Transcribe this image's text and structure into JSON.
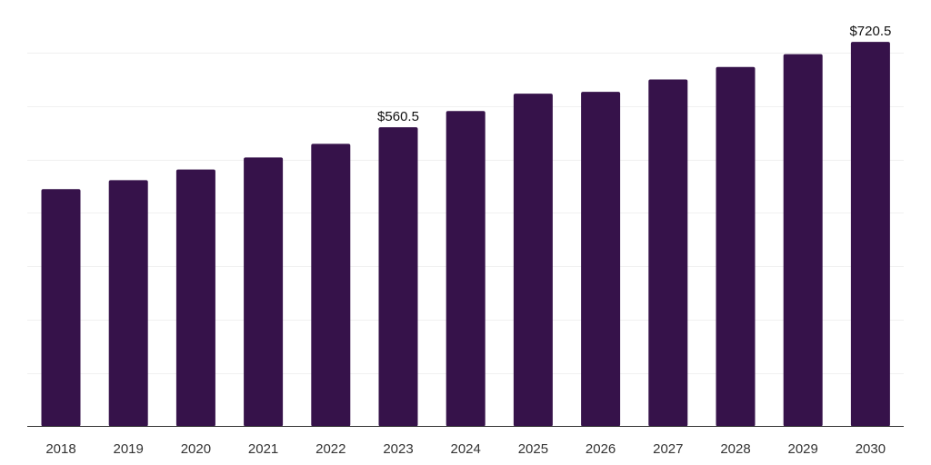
{
  "chart_data": {
    "type": "bar",
    "title": "",
    "xlabel": "",
    "ylabel": "",
    "categories": [
      "2018",
      "2019",
      "2020",
      "2021",
      "2022",
      "2023",
      "2024",
      "2025",
      "2026",
      "2027",
      "2028",
      "2029",
      "2030"
    ],
    "values": [
      444.5,
      461.5,
      481.5,
      504,
      529.5,
      560.5,
      591,
      623.5,
      627,
      650,
      673.5,
      697.5,
      720.5
    ],
    "data_labels": [
      {
        "category": "2023",
        "text": "$560.5"
      },
      {
        "category": "2030",
        "text": "$720.5"
      }
    ],
    "ylim": [
      0,
      800
    ],
    "y_gridlines": [
      100,
      200,
      300,
      400,
      500,
      600,
      700,
      800
    ],
    "grid": true,
    "legend": "none",
    "bar_color": "#36124a",
    "axis_color": "#333333",
    "grid_color": "#f0f0f0"
  }
}
